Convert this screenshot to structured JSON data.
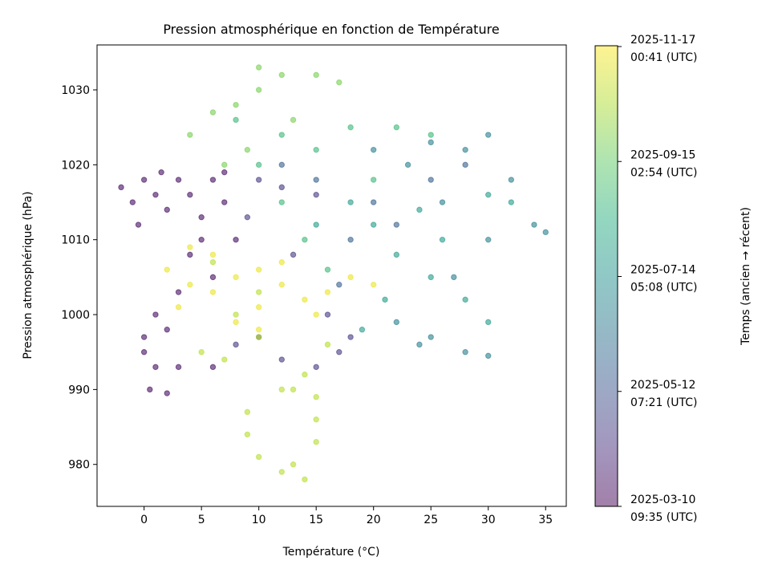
{
  "chart_data": {
    "type": "scatter",
    "title": "Pression atmosphérique en fonction de Température",
    "xlabel": "Température (°C)",
    "ylabel": "Pression atmosphérique (hPa)",
    "xlim": [
      -4.1,
      36.8
    ],
    "ylim": [
      974.4,
      1036
    ],
    "xticks": [
      0,
      5,
      10,
      15,
      20,
      25,
      30,
      35
    ],
    "yticks": [
      980,
      990,
      1000,
      1010,
      1020,
      1030
    ],
    "grid": false,
    "colormap": "viridis",
    "point_alpha": 0.6,
    "colorbar": {
      "label": "Temps (ancien → récent)",
      "range": [
        "2025-03-10T09:35",
        "2025-11-17T00:41"
      ],
      "ticks": [
        {
          "time": "2025-03-10T09:35",
          "line1": "2025-03-10",
          "line2": "09:35 (UTC)"
        },
        {
          "time": "2025-05-12T07:21",
          "line1": "2025-05-12",
          "line2": "07:21 (UTC)"
        },
        {
          "time": "2025-07-14T05:08",
          "line1": "2025-07-14",
          "line2": "05:08 (UTC)"
        },
        {
          "time": "2025-09-15T02:54",
          "line1": "2025-09-15",
          "line2": "02:54 (UTC)"
        },
        {
          "time": "2025-11-17T00:41",
          "line1": "2025-11-17",
          "line2": "00:41 (UTC)"
        }
      ]
    },
    "series": [
      {
        "time": "2025-03-20",
        "points": [
          [
            -2,
            1017
          ],
          [
            -1,
            1015
          ],
          [
            0,
            1018
          ],
          [
            1,
            1016
          ],
          [
            2,
            1014
          ],
          [
            3,
            1018
          ],
          [
            4,
            1016
          ],
          [
            5,
            1013
          ],
          [
            6,
            1018
          ],
          [
            7,
            1015
          ],
          [
            0,
            997
          ],
          [
            0,
            995
          ],
          [
            1,
            993
          ],
          [
            0.5,
            990
          ],
          [
            2,
            989.5
          ],
          [
            1,
            1000
          ],
          [
            2,
            998
          ],
          [
            3,
            1003
          ],
          [
            4,
            1008
          ],
          [
            5,
            1010
          ],
          [
            6,
            1005
          ],
          [
            3,
            993
          ],
          [
            6,
            993
          ],
          [
            8,
            1010
          ],
          [
            7,
            1019
          ],
          [
            1.5,
            1019
          ],
          [
            -0.5,
            1012
          ]
        ]
      },
      {
        "time": "2025-04-20",
        "points": [
          [
            8,
            996
          ],
          [
            10,
            997
          ],
          [
            12,
            994
          ],
          [
            15,
            993
          ],
          [
            17,
            995
          ],
          [
            12,
            1017
          ],
          [
            15,
            1016
          ],
          [
            10,
            1018
          ],
          [
            9,
            1013
          ],
          [
            13,
            1008
          ],
          [
            16,
            1000
          ],
          [
            18,
            997
          ]
        ]
      },
      {
        "time": "2025-05-25",
        "points": [
          [
            12,
            1020
          ],
          [
            15,
            1018
          ],
          [
            20,
            1015
          ],
          [
            22,
            1012
          ],
          [
            25,
            1018
          ],
          [
            18,
            1010
          ],
          [
            28,
            1020
          ],
          [
            17,
            1004
          ]
        ]
      },
      {
        "time": "2025-06-25",
        "points": [
          [
            20,
            1022
          ],
          [
            25,
            1023
          ],
          [
            28,
            1022
          ],
          [
            30,
            1024
          ],
          [
            32,
            1018
          ],
          [
            34,
            1012
          ],
          [
            35,
            1011
          ],
          [
            30,
            1010
          ],
          [
            27,
            1005
          ],
          [
            25,
            997
          ],
          [
            22,
            999
          ],
          [
            24,
            996
          ],
          [
            28,
            995
          ],
          [
            30,
            994.5
          ],
          [
            26,
            1015
          ],
          [
            23,
            1020
          ]
        ]
      },
      {
        "time": "2025-07-25",
        "points": [
          [
            18,
            1015
          ],
          [
            20,
            1012
          ],
          [
            22,
            1008
          ],
          [
            25,
            1005
          ],
          [
            28,
            1002
          ],
          [
            30,
            999
          ],
          [
            24,
            1014
          ],
          [
            30,
            1016
          ],
          [
            32,
            1015
          ],
          [
            21,
            1002
          ],
          [
            19,
            998
          ],
          [
            26,
            1010
          ],
          [
            15,
            1012
          ]
        ]
      },
      {
        "time": "2025-08-25",
        "points": [
          [
            10,
            1020
          ],
          [
            12,
            1024
          ],
          [
            15,
            1022
          ],
          [
            18,
            1025
          ],
          [
            22,
            1025
          ],
          [
            25,
            1024
          ],
          [
            14,
            1010
          ],
          [
            20,
            1018
          ],
          [
            8,
            1026
          ],
          [
            12,
            1015
          ],
          [
            16,
            1006
          ]
        ]
      },
      {
        "time": "2025-09-25",
        "points": [
          [
            6,
            1027
          ],
          [
            8,
            1028
          ],
          [
            10,
            1033
          ],
          [
            12,
            1032
          ],
          [
            15,
            1032
          ],
          [
            17,
            1031
          ],
          [
            9,
            1022
          ],
          [
            4,
            1024
          ],
          [
            7,
            1020
          ],
          [
            10,
            1030
          ],
          [
            13,
            1026
          ]
        ]
      },
      {
        "time": "2025-10-20",
        "points": [
          [
            9,
            987
          ],
          [
            9,
            984
          ],
          [
            10,
            981
          ],
          [
            12,
            979
          ],
          [
            13,
            980
          ],
          [
            15,
            983
          ],
          [
            15,
            986
          ],
          [
            14,
            978
          ],
          [
            13,
            990
          ],
          [
            14,
            992
          ],
          [
            12,
            990
          ],
          [
            7,
            994
          ],
          [
            8,
            1000
          ],
          [
            10,
            1003
          ],
          [
            6,
            1007
          ],
          [
            5,
            995
          ],
          [
            10,
            997
          ],
          [
            15,
            989
          ],
          [
            16,
            996
          ]
        ]
      },
      {
        "time": "2025-11-10",
        "points": [
          [
            2,
            1006
          ],
          [
            4,
            1004
          ],
          [
            6,
            1003
          ],
          [
            8,
            1005
          ],
          [
            10,
            1006
          ],
          [
            12,
            1004
          ],
          [
            14,
            1002
          ],
          [
            16,
            1003
          ],
          [
            18,
            1005
          ],
          [
            20,
            1004
          ],
          [
            8,
            999
          ],
          [
            10,
            998
          ],
          [
            6,
            1008
          ],
          [
            4,
            1009
          ],
          [
            10,
            1001
          ],
          [
            3,
            1001
          ],
          [
            12,
            1007
          ],
          [
            15,
            1000
          ]
        ]
      }
    ]
  }
}
